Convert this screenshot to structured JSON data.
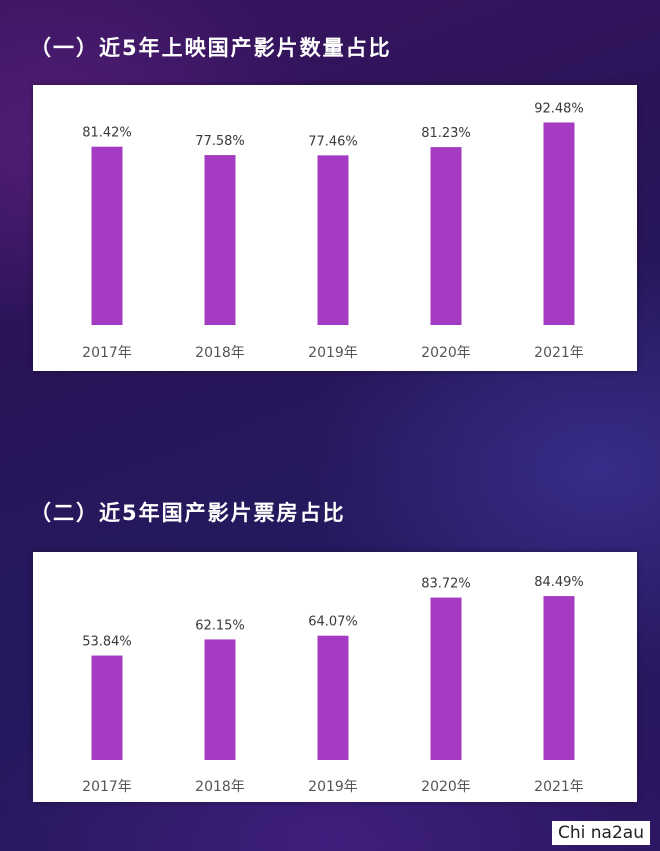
{
  "section1": {
    "title": "（一）近5年上映国产影片数量占比"
  },
  "section2": {
    "title": "（二）近5年国产影片票房占比"
  },
  "watermark": "Chi na2au",
  "colors": {
    "bar": "#a53ac3",
    "panel": "#ffffff",
    "background": "#2a1458"
  },
  "chart_data": [
    {
      "type": "bar",
      "title": "（一）近5年上映国产影片数量占比",
      "categories": [
        "2017年",
        "2018年",
        "2019年",
        "2020年",
        "2021年"
      ],
      "values": [
        81.42,
        77.58,
        77.46,
        81.23,
        92.48
      ],
      "value_labels": [
        "81.42%",
        "77.58%",
        "77.46%",
        "81.23%",
        "92.48%"
      ],
      "ylim": [
        0,
        100
      ],
      "grid": false,
      "legend": "none"
    },
    {
      "type": "bar",
      "title": "（二）近5年国产影片票房占比",
      "categories": [
        "2017年",
        "2018年",
        "2019年",
        "2020年",
        "2021年"
      ],
      "values": [
        53.84,
        62.15,
        64.07,
        83.72,
        84.49
      ],
      "value_labels": [
        "53.84%",
        "62.15%",
        "64.07%",
        "83.72%",
        "84.49%"
      ],
      "ylim": [
        0,
        100
      ],
      "grid": false,
      "legend": "none"
    }
  ]
}
